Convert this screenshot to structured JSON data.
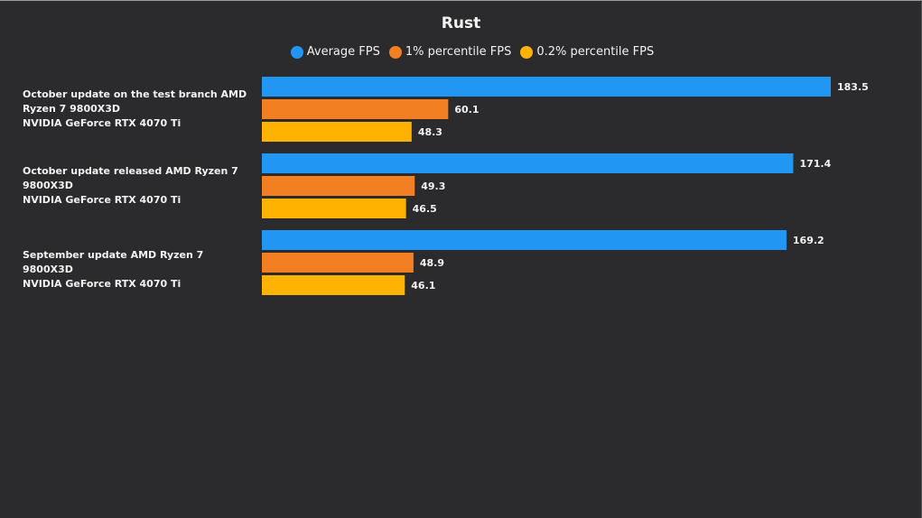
{
  "chart_data": {
    "type": "bar",
    "orientation": "horizontal",
    "title": "Rust",
    "categories": [
      {
        "lines": [
          "October update on the test branch AMD",
          "Ryzen 7 9800X3D",
          "NVIDIA GeForce RTX 4070 Ti"
        ]
      },
      {
        "lines": [
          "October update released AMD Ryzen 7",
          "9800X3D",
          "NVIDIA GeForce RTX 4070 Ti"
        ]
      },
      {
        "lines": [
          "September update AMD Ryzen 7 9800X3D",
          "NVIDIA GeForce RTX 4070 Ti"
        ]
      }
    ],
    "series": [
      {
        "name": "Average FPS",
        "color": "#2196f3",
        "values": [
          183.5,
          171.4,
          169.2
        ]
      },
      {
        "name": "1% percentile FPS",
        "color": "#f27f22",
        "values": [
          60.1,
          49.3,
          48.9
        ]
      },
      {
        "name": "0.2% percentile FPS",
        "color": "#ffb300",
        "values": [
          48.3,
          46.5,
          46.1
        ]
      }
    ],
    "xlim": [
      0,
      190
    ],
    "grid": false,
    "legend_position": "top-center",
    "xlabel": "",
    "ylabel": ""
  }
}
